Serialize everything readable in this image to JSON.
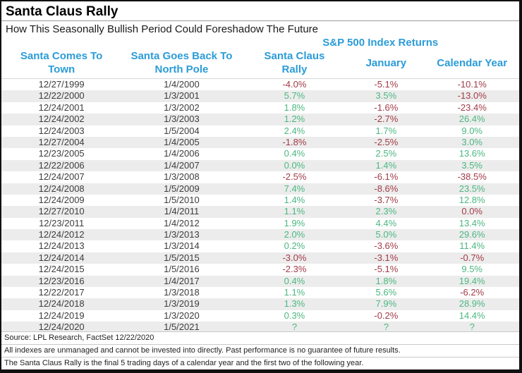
{
  "colors": {
    "accent_blue": "#2b9cd8",
    "positive_green": "#4cb781",
    "negative_red": "#a23b47",
    "stripe_gray": "#ececec",
    "frame_border": "#111111"
  },
  "header": {
    "title": "Santa Claus Rally",
    "subtitle": "How This Seasonally Bullish Period Could Foreshadow The Future",
    "group_label": "S&P 500 Index Returns"
  },
  "columns_display": [
    {
      "line1": "Santa Comes To",
      "line2": "Town"
    },
    {
      "line1": "Santa Goes Back To",
      "line2": "North Pole"
    },
    {
      "line1": "Santa Claus",
      "line2": "Rally"
    },
    {
      "line1": "January",
      "line2": ""
    },
    {
      "line1": "Calendar Year",
      "line2": ""
    }
  ],
  "footer": {
    "source": "Source: LPL Research, FactSet 12/22/2020",
    "note1": "All indexes are unmanaged and cannot be invested into directly. Past performance is no guarantee of future results.",
    "note2": "The Santa Claus Rally is the final 5 trading days of a calendar year and the first two of the following year."
  },
  "chart_data": {
    "type": "table",
    "title": "Santa Claus Rally",
    "subtitle": "How This Seasonally Bullish Period Could Foreshadow The Future",
    "group_header": "S&P 500 Index Returns",
    "columns": [
      "Santa Comes To Town",
      "Santa Goes Back To North Pole",
      "Santa Claus Rally",
      "January",
      "Calendar Year"
    ],
    "rows": [
      {
        "d1": "12/27/1999",
        "d2": "1/4/2000",
        "vals": [
          [
            "-4.0%",
            "neg"
          ],
          [
            "-5.1%",
            "neg"
          ],
          [
            "-10.1%",
            "neg"
          ]
        ]
      },
      {
        "d1": "12/22/2000",
        "d2": "1/3/2001",
        "vals": [
          [
            "5.7%",
            "pos"
          ],
          [
            "3.5%",
            "pos"
          ],
          [
            "-13.0%",
            "neg"
          ]
        ]
      },
      {
        "d1": "12/24/2001",
        "d2": "1/3/2002",
        "vals": [
          [
            "1.8%",
            "pos"
          ],
          [
            "-1.6%",
            "neg"
          ],
          [
            "-23.4%",
            "neg"
          ]
        ]
      },
      {
        "d1": "12/24/2002",
        "d2": "1/3/2003",
        "vals": [
          [
            "1.2%",
            "pos"
          ],
          [
            "-2.7%",
            "neg"
          ],
          [
            "26.4%",
            "pos"
          ]
        ]
      },
      {
        "d1": "12/24/2003",
        "d2": "1/5/2004",
        "vals": [
          [
            "2.4%",
            "pos"
          ],
          [
            "1.7%",
            "pos"
          ],
          [
            "9.0%",
            "pos"
          ]
        ]
      },
      {
        "d1": "12/27/2004",
        "d2": "1/4/2005",
        "vals": [
          [
            "-1.8%",
            "neg"
          ],
          [
            "-2.5%",
            "neg"
          ],
          [
            "3.0%",
            "pos"
          ]
        ]
      },
      {
        "d1": "12/23/2005",
        "d2": "1/4/2006",
        "vals": [
          [
            "0.4%",
            "pos"
          ],
          [
            "2.5%",
            "pos"
          ],
          [
            "13.6%",
            "pos"
          ]
        ]
      },
      {
        "d1": "12/22/2006",
        "d2": "1/4/2007",
        "vals": [
          [
            "0.0%",
            "pos"
          ],
          [
            "1.4%",
            "pos"
          ],
          [
            "3.5%",
            "pos"
          ]
        ]
      },
      {
        "d1": "12/24/2007",
        "d2": "1/3/2008",
        "vals": [
          [
            "-2.5%",
            "neg"
          ],
          [
            "-6.1%",
            "neg"
          ],
          [
            "-38.5%",
            "neg"
          ]
        ]
      },
      {
        "d1": "12/24/2008",
        "d2": "1/5/2009",
        "vals": [
          [
            "7.4%",
            "pos"
          ],
          [
            "-8.6%",
            "neg"
          ],
          [
            "23.5%",
            "pos"
          ]
        ]
      },
      {
        "d1": "12/24/2009",
        "d2": "1/5/2010",
        "vals": [
          [
            "1.4%",
            "pos"
          ],
          [
            "-3.7%",
            "neg"
          ],
          [
            "12.8%",
            "pos"
          ]
        ]
      },
      {
        "d1": "12/27/2010",
        "d2": "1/4/2011",
        "vals": [
          [
            "1.1%",
            "pos"
          ],
          [
            "2.3%",
            "pos"
          ],
          [
            "0.0%",
            "neg"
          ]
        ]
      },
      {
        "d1": "12/23/2011",
        "d2": "1/4/2012",
        "vals": [
          [
            "1.9%",
            "pos"
          ],
          [
            "4.4%",
            "pos"
          ],
          [
            "13.4%",
            "pos"
          ]
        ]
      },
      {
        "d1": "12/24/2012",
        "d2": "1/3/2013",
        "vals": [
          [
            "2.0%",
            "pos"
          ],
          [
            "5.0%",
            "pos"
          ],
          [
            "29.6%",
            "pos"
          ]
        ]
      },
      {
        "d1": "12/24/2013",
        "d2": "1/3/2014",
        "vals": [
          [
            "0.2%",
            "pos"
          ],
          [
            "-3.6%",
            "neg"
          ],
          [
            "11.4%",
            "pos"
          ]
        ]
      },
      {
        "d1": "12/24/2014",
        "d2": "1/5/2015",
        "vals": [
          [
            "-3.0%",
            "neg"
          ],
          [
            "-3.1%",
            "neg"
          ],
          [
            "-0.7%",
            "neg"
          ]
        ]
      },
      {
        "d1": "12/24/2015",
        "d2": "1/5/2016",
        "vals": [
          [
            "-2.3%",
            "neg"
          ],
          [
            "-5.1%",
            "neg"
          ],
          [
            "9.5%",
            "pos"
          ]
        ]
      },
      {
        "d1": "12/23/2016",
        "d2": "1/4/2017",
        "vals": [
          [
            "0.4%",
            "pos"
          ],
          [
            "1.8%",
            "pos"
          ],
          [
            "19.4%",
            "pos"
          ]
        ]
      },
      {
        "d1": "12/22/2017",
        "d2": "1/3/2018",
        "vals": [
          [
            "1.1%",
            "pos"
          ],
          [
            "5.6%",
            "pos"
          ],
          [
            "-6.2%",
            "neg"
          ]
        ]
      },
      {
        "d1": "12/24/2018",
        "d2": "1/3/2019",
        "vals": [
          [
            "1.3%",
            "pos"
          ],
          [
            "7.9%",
            "pos"
          ],
          [
            "28.9%",
            "pos"
          ]
        ]
      },
      {
        "d1": "12/24/2019",
        "d2": "1/3/2020",
        "vals": [
          [
            "0.3%",
            "pos"
          ],
          [
            "-0.2%",
            "neg"
          ],
          [
            "14.4%",
            "pos"
          ]
        ]
      },
      {
        "d1": "12/24/2020",
        "d2": "1/5/2021",
        "vals": [
          [
            "?",
            "pos"
          ],
          [
            "?",
            "pos"
          ],
          [
            "?",
            "pos"
          ]
        ]
      }
    ]
  }
}
